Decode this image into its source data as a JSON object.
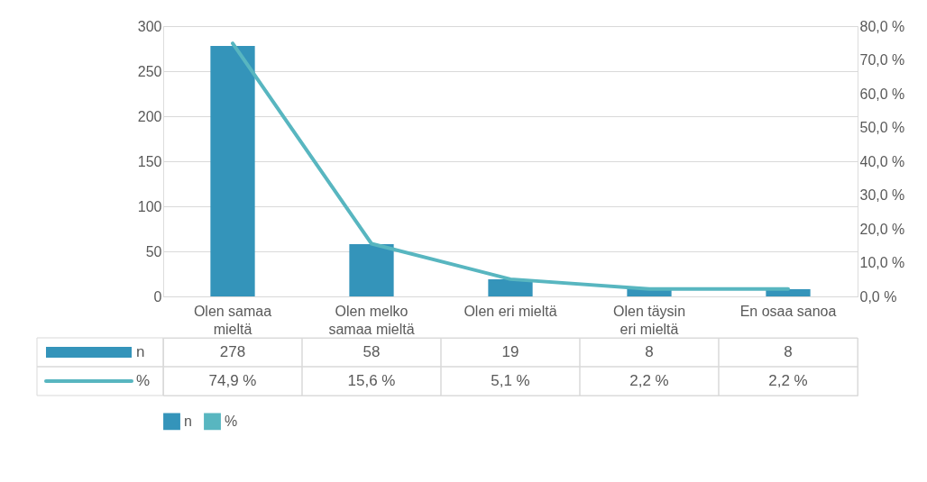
{
  "chart_data": {
    "type": "bar",
    "categories": [
      "Olen samaa mieltä",
      "Olen melko samaa mieltä",
      "Olen eri mieltä",
      "Olen täysin eri mieltä",
      "En osaa sanoa"
    ],
    "series": [
      {
        "name": "n",
        "color": "#3494ba",
        "values": [
          278,
          58,
          19,
          8,
          8
        ],
        "value_labels": [
          "278",
          "58",
          "19",
          "8",
          "8"
        ]
      },
      {
        "name": "%",
        "type": "line",
        "axis": "y2",
        "color": "#58b6c0",
        "values": [
          74.9,
          15.6,
          5.1,
          2.2,
          2.2
        ],
        "value_labels": [
          "74,9 %",
          "15,6 %",
          "5,1 %",
          "2,2 %",
          "2,2 %"
        ]
      }
    ],
    "ylim": [
      0,
      300
    ],
    "yticks": [
      0,
      50,
      100,
      150,
      200,
      250,
      300
    ],
    "y2lim": [
      0,
      80
    ],
    "y2ticks": [
      {
        "value": 0,
        "label": "0,0 %"
      },
      {
        "value": 10,
        "label": "10,0 %"
      },
      {
        "value": 20,
        "label": "20,0 %"
      },
      {
        "value": 30,
        "label": "30,0 %"
      },
      {
        "value": 40,
        "label": "40,0 %"
      },
      {
        "value": 50,
        "label": "50,0 %"
      },
      {
        "value": 60,
        "label": "60,0 %"
      },
      {
        "value": 70,
        "label": "70,0 %"
      },
      {
        "value": 80,
        "label": "80,0 %"
      }
    ],
    "grid": "y",
    "legend": "bottom",
    "marker": "none",
    "line_style": "solid"
  }
}
